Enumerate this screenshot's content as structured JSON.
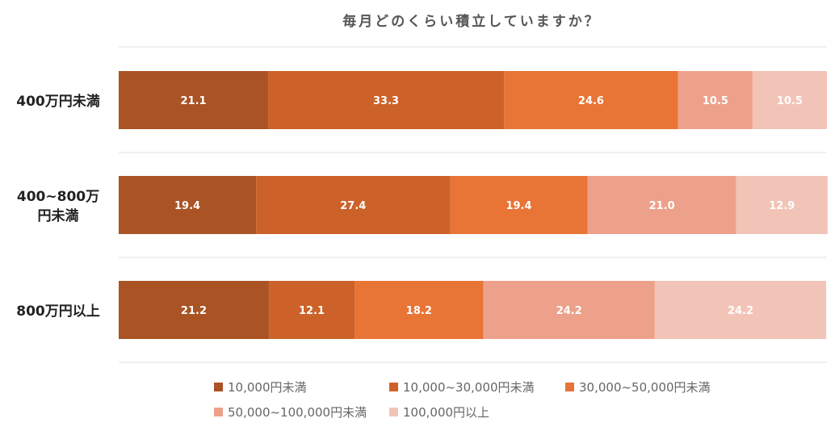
{
  "chart_data": {
    "type": "bar",
    "orientation": "horizontal",
    "stacked": true,
    "title": "毎月どのくらい積立していますか？",
    "categories": [
      [
        "400万円未満"
      ],
      [
        "400~800万",
        "円未満"
      ],
      [
        "800万円以上"
      ]
    ],
    "xlim": [
      0,
      100
    ],
    "series": [
      {
        "name": "10,000円未満",
        "color": "#AA5324",
        "values": [
          21.1,
          19.4,
          21.2
        ]
      },
      {
        "name": "10,000~30,000円未満",
        "color": "#CC6229",
        "values": [
          33.3,
          27.4,
          12.1
        ]
      },
      {
        "name": "30,000~50,000円未満",
        "color": "#E87436",
        "values": [
          24.6,
          19.4,
          18.2
        ]
      },
      {
        "name": "50,000~100,000円未満",
        "color": "#EDA18A",
        "values": [
          10.5,
          21.0,
          24.2
        ]
      },
      {
        "name": "100,000円以上",
        "color": "#F2C4B7",
        "values": [
          10.5,
          12.9,
          24.2
        ]
      }
    ],
    "grid": "horizontal separators",
    "legend_position": "bottom"
  },
  "colors": {
    "title": "#555555",
    "label": "#222222",
    "gridline": "#E0E0E0",
    "value_text": "#FFFFFF",
    "legend_text": "#666666"
  }
}
